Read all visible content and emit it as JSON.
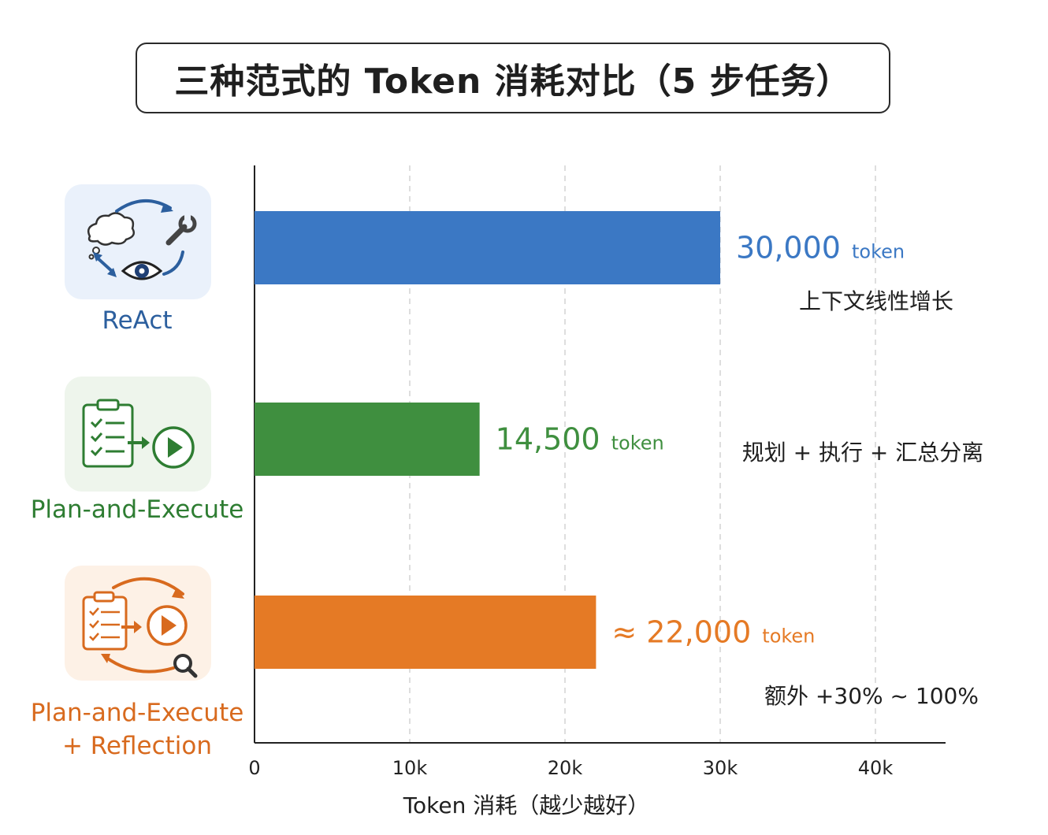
{
  "chart_data": {
    "type": "bar",
    "orientation": "horizontal",
    "title": "三种范式的 Token 消耗对比（5 步任务）",
    "xlabel": "Token 消耗（越少越好）",
    "ylabel": "",
    "xlim": [
      0,
      40000
    ],
    "ticks": [
      0,
      10000,
      20000,
      30000,
      40000
    ],
    "tick_labels": [
      "0",
      "10k",
      "20k",
      "30k",
      "40k"
    ],
    "grid": true,
    "categories": [
      "ReAct",
      "Plan-and-Execute",
      "Plan-and-Execute + Reflection"
    ],
    "category_lines": [
      [
        "ReAct"
      ],
      [
        "Plan-and-Execute"
      ],
      [
        "Plan-and-Execute",
        "+ Reflection"
      ]
    ],
    "values": [
      30000,
      14500,
      22000
    ],
    "value_labels": [
      "30,000",
      "14,500",
      "≈ 22,000"
    ],
    "value_unit": "token",
    "annotations": [
      "上下文线性增长",
      "规划 + 执行 + 汇总分离",
      "额外 +30% ~ 100%"
    ],
    "colors": [
      "#3b78c4",
      "#3f8f3f",
      "#e57a25"
    ],
    "icon_colors": [
      "#2c5f9e",
      "#2e7d32",
      "#d86a1e"
    ],
    "icon_bg": [
      "#eaf1fb",
      "#eef5ec",
      "#fdf1e6"
    ]
  },
  "icons": [
    "react-cycle-icon",
    "plan-execute-icon",
    "plan-execute-reflection-icon"
  ]
}
